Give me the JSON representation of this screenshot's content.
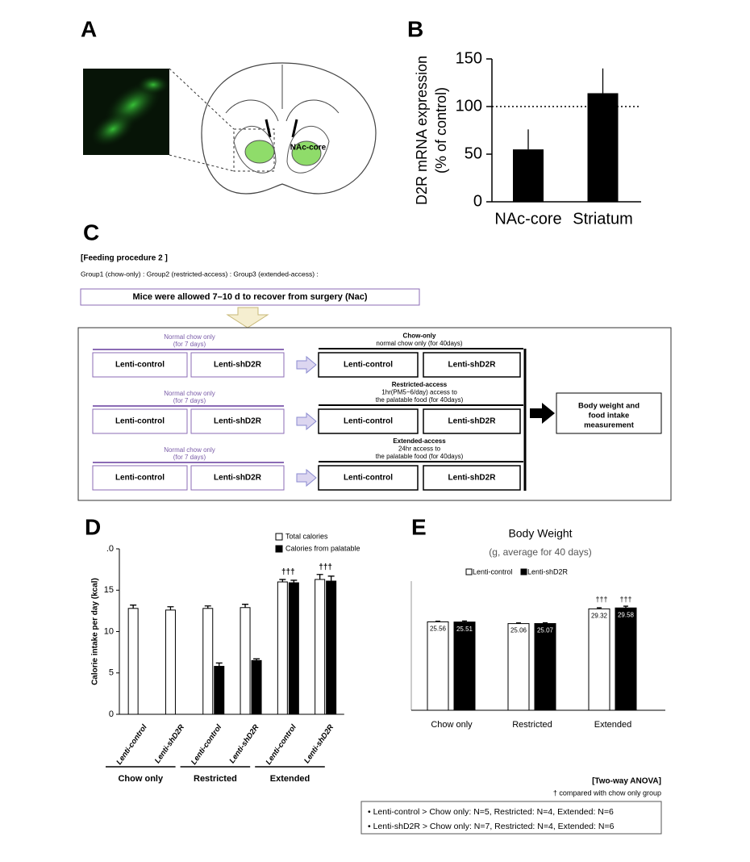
{
  "panel_a": {
    "label": "A",
    "region": "NAc-core"
  },
  "panel_c": {
    "label": "C",
    "heading": "[Feeding procedure 2 ]",
    "groups": "Group1 (chow-only) : Group2 (restricted-access) : Group3 (extended-access) :",
    "recovery": "Mice were allowed 7–10 d to recover from surgery (Nac)",
    "rows": [
      {
        "pre": [
          "Normal chow only",
          "(for 7 days)"
        ],
        "left": [
          "Lenti-control",
          "Lenti-shD2R"
        ],
        "post": [
          "Chow-only",
          "normal chow only (for 40days)"
        ],
        "right": [
          "Lenti-control",
          "Lenti-shD2R"
        ]
      },
      {
        "pre": [
          "Normal chow only",
          "(for 7 days)"
        ],
        "left": [
          "Lenti-control",
          "Lenti-shD2R"
        ],
        "post": [
          "Restricted-access",
          "1hr(PM5~6/day) access to",
          "the palatable food (for 40days)"
        ],
        "right": [
          "Lenti-control",
          "Lenti-shD2R"
        ]
      },
      {
        "pre": [
          "Normal chow only",
          "(for 7 days)"
        ],
        "left": [
          "Lenti-control",
          "Lenti-shD2R"
        ],
        "post": [
          "Extended-access",
          "24hr access to",
          "the palatable food (for 40days)"
        ],
        "right": [
          "Lenti-control",
          "Lenti-shD2R"
        ]
      }
    ],
    "outcome": [
      "Body weight and",
      "food intake",
      "measurement"
    ]
  },
  "chart_data": [
    {
      "type": "bar",
      "panel": "B",
      "y_label": [
        "D2R mRNA expression",
        "(% of control)"
      ],
      "categories": [
        "NAc-core",
        "Striatum"
      ],
      "values": [
        55,
        114
      ],
      "errors": [
        21,
        26
      ],
      "color": "#000000",
      "ylim": [
        0,
        150
      ],
      "yticks": [
        0,
        50,
        100,
        150
      ],
      "reference_line": 100
    },
    {
      "type": "grouped_bar",
      "panel": "D",
      "y_label": "Calorie intake per day (kcal)",
      "categories": [
        "Lenti-control",
        "Lenti-shD2R",
        "Lenti-control",
        "Lenti-shD2R",
        "Lenti-control",
        "Lenti-shD2R"
      ],
      "groups": [
        "Chow only",
        "Restricted",
        "Extended"
      ],
      "series": [
        {
          "name": "Total calories",
          "color": "#ffffff",
          "values": [
            12.8,
            12.6,
            12.8,
            12.9,
            16.0,
            16.3
          ],
          "errors": [
            0.4,
            0.4,
            0.3,
            0.4,
            0.3,
            0.6
          ]
        },
        {
          "name": "Calories from palatable",
          "color": "#000000",
          "values": [
            null,
            null,
            5.8,
            6.5,
            15.9,
            16.1
          ],
          "errors": [
            null,
            null,
            0.4,
            0.2,
            0.3,
            0.6
          ]
        }
      ],
      "annotations": [
        null,
        null,
        null,
        null,
        "†††",
        "†††"
      ],
      "ylim": [
        0,
        20
      ],
      "yticks": [
        0,
        5,
        10,
        15,
        {
          "value": 20,
          "label": ".0"
        }
      ]
    },
    {
      "type": "grouped_bar",
      "panel": "E",
      "title": "Body Weight",
      "subtitle": "(g, average for 40 days)",
      "categories": [
        "Chow only",
        "Restricted",
        "Extended"
      ],
      "series": [
        {
          "name": "Lenti-control",
          "color": "#ffffff",
          "values": [
            25.56,
            25.06,
            29.32
          ],
          "errors": [
            0.2,
            0.2,
            0.3
          ]
        },
        {
          "name": "Lenti-shD2R",
          "color": "#000000",
          "values": [
            25.51,
            25.07,
            29.58
          ],
          "errors": [
            0.3,
            0.2,
            0.5
          ]
        }
      ],
      "annotations": [
        null,
        null,
        "†††"
      ],
      "data_labels": true,
      "ylim": [
        0,
        42
      ]
    }
  ],
  "footnotes": {
    "test": "[Two-way ANOVA]",
    "dagger": "† compared with chow only group",
    "n": [
      "• Lenti-control > Chow only: N=5, Restricted: N=4, Extended: N=6",
      "• Lenti-shD2R > Chow only: N=7, Restricted: N=4, Extended: N=6"
    ]
  }
}
